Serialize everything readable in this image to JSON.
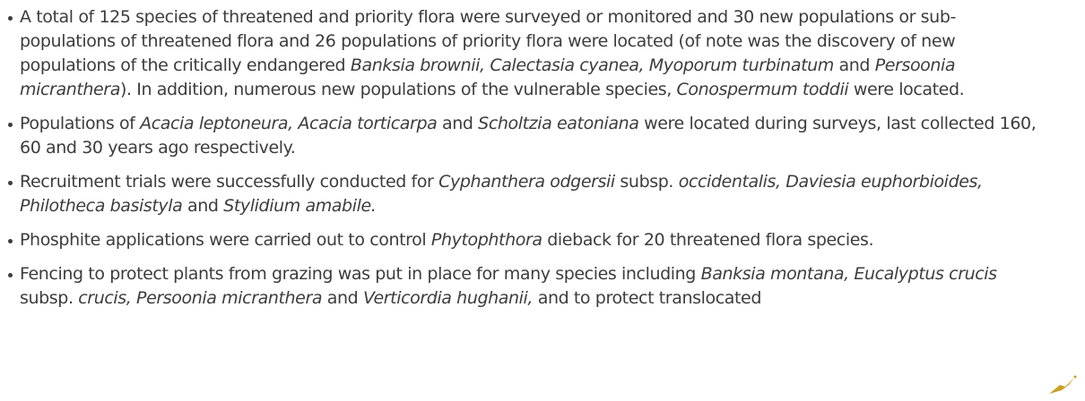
{
  "bullets": [
    [
      {
        "text": "A total of 125 species of threatened and priority flora were surveyed or monitored and 30 new populations or sub-populations of threatened flora and 26 populations of priority flora were located (of note was the discovery of new populations of the critically endangered "
      },
      {
        "text": "Banksia brownii, Calectasia cyanea, Myoporum turbinatum",
        "italic": true
      },
      {
        "text": " and "
      },
      {
        "text": "Persoonia micranthera",
        "italic": true
      },
      {
        "text": "). In addition, numerous new populations of the vulnerable species, "
      },
      {
        "text": "Conospermum toddii",
        "italic": true
      },
      {
        "text": " were located."
      }
    ],
    [
      {
        "text": "Populations of "
      },
      {
        "text": "Acacia leptoneura, Acacia torticarpa",
        "italic": true
      },
      {
        "text": " and "
      },
      {
        "text": "Scholtzia eatoniana",
        "italic": true
      },
      {
        "text": " were located during surveys, last collected 160, 60 and 30 years ago respectively."
      }
    ],
    [
      {
        "text": "Recruitment trials were successfully conducted for "
      },
      {
        "text": "Cyphanthera odgersii",
        "italic": true
      },
      {
        "text": " subsp. "
      },
      {
        "text": "occidentalis, Daviesia euphorbioides, Philotheca basistyla",
        "italic": true
      },
      {
        "text": " and "
      },
      {
        "text": "Stylidium amabile.",
        "italic": true
      }
    ],
    [
      {
        "text": "Phosphite applications were carried out to control "
      },
      {
        "text": "Phytophthora",
        "italic": true
      },
      {
        "text": " dieback for 20 threatened flora species."
      }
    ],
    [
      {
        "text": "Fencing to protect plants from grazing was put in place for many species including "
      },
      {
        "text": "Banksia montana, Eucalyptus crucis",
        "italic": true
      },
      {
        "text": " subsp. "
      },
      {
        "text": "crucis, Persoonia micranthera",
        "italic": true
      },
      {
        "text": " and "
      },
      {
        "text": "Verticordia hughanii,",
        "italic": true
      },
      {
        "text": " and to protect translocated"
      }
    ]
  ]
}
